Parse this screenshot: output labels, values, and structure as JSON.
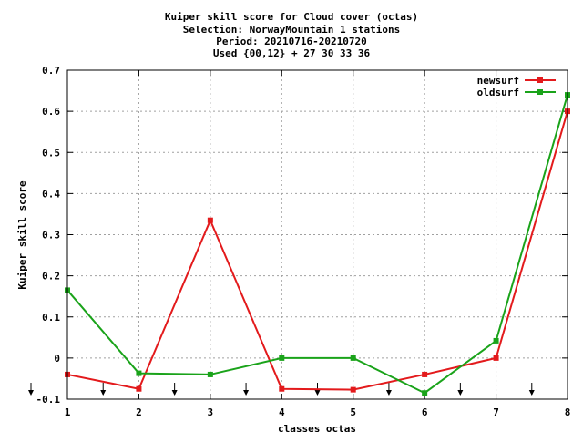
{
  "chart_data": {
    "type": "line",
    "title_lines": [
      "Kuiper skill score  for Cloud cover (octas)",
      "Selection: NorwayMountain      1 stations",
      "Period: 20210716-20210720",
      "Used {00,12} + 27 30 33 36"
    ],
    "xlabel": "classes octas",
    "ylabel": "Kuiper skill score",
    "xlim": [
      1,
      8
    ],
    "ylim": [
      -0.1,
      0.7
    ],
    "x_ticks": [
      1,
      2,
      3,
      4,
      5,
      6,
      7,
      8
    ],
    "y_ticks": [
      -0.1,
      0,
      0.1,
      0.2,
      0.3,
      0.4,
      0.5,
      0.6,
      0.7
    ],
    "y_tick_labels": [
      "-0.1",
      "0",
      "0.1",
      "0.2",
      "0.3",
      "0.4",
      "0.5",
      "0.6",
      "0.7"
    ],
    "grid": true,
    "legend_position": "top-right",
    "x": [
      1,
      2,
      3,
      4,
      5,
      6,
      7,
      8
    ],
    "series": [
      {
        "name": "newsurf",
        "color": "#e31a1c",
        "values": [
          -0.04,
          -0.075,
          0.335,
          -0.075,
          -0.077,
          -0.04,
          0.0,
          0.6
        ]
      },
      {
        "name": "oldsurf",
        "color": "#1aa31a",
        "values": [
          0.165,
          -0.037,
          -0.04,
          0.0,
          0.0,
          -0.085,
          0.042,
          0.64
        ]
      }
    ],
    "arrow_marker_x": [
      1,
      1.5,
      2.5,
      3.5,
      4.5,
      5.5,
      6.5,
      7.5
    ]
  }
}
